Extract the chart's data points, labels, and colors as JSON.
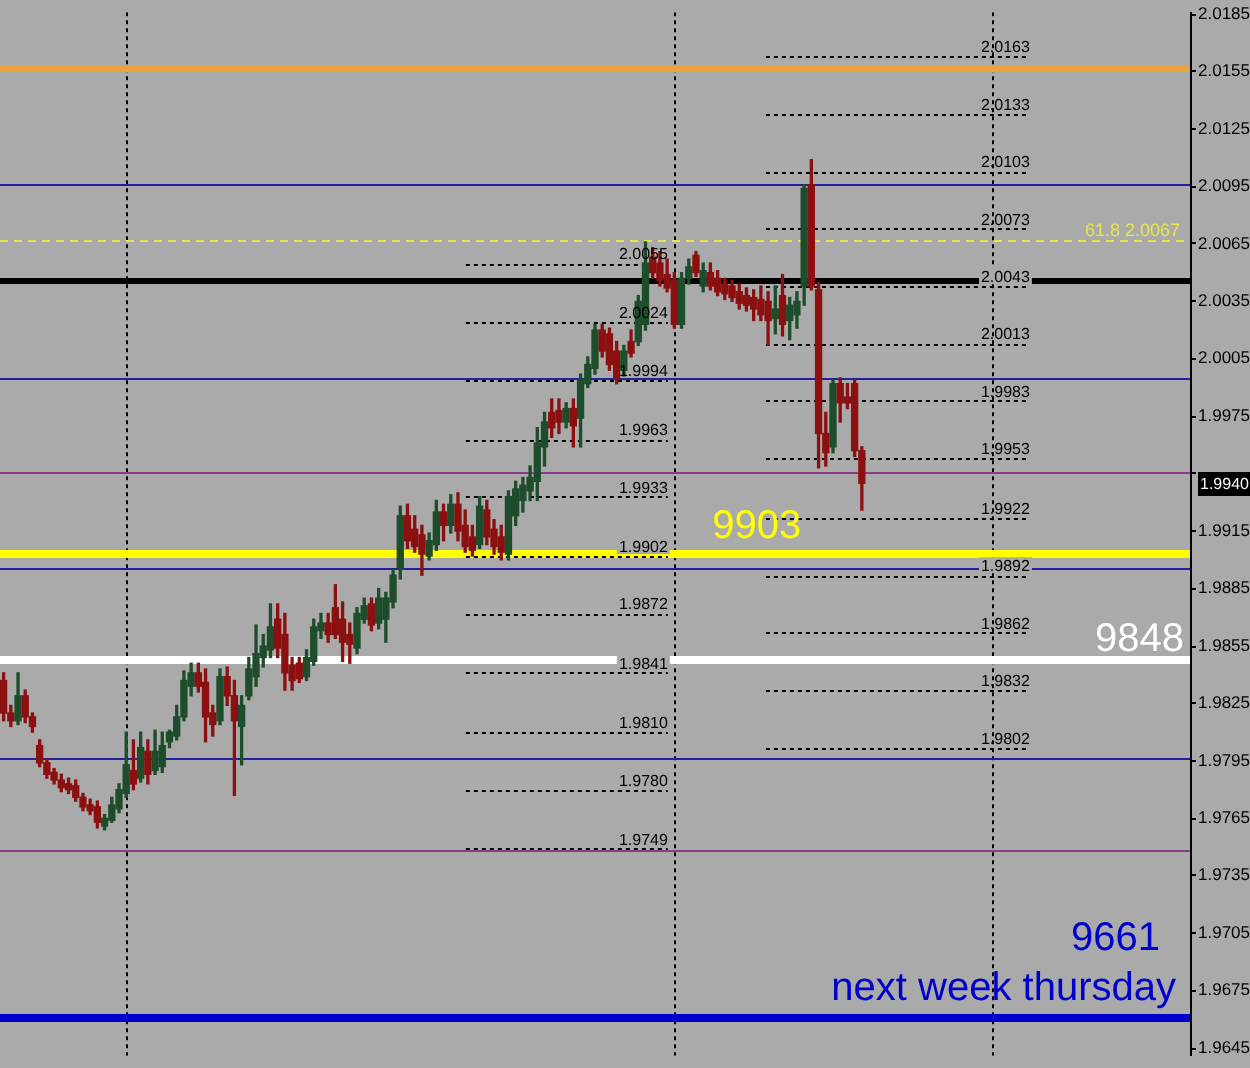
{
  "chart_data": {
    "type": "candlestick",
    "categories": [
      null,
      null,
      null,
      null,
      null,
      null,
      null,
      null,
      null,
      null,
      null,
      null,
      null,
      null,
      null,
      null,
      null,
      null,
      null,
      null,
      null,
      null,
      null,
      null,
      null,
      null,
      null,
      null,
      null,
      null,
      null,
      null,
      null,
      null,
      null,
      null,
      null,
      null,
      null,
      null,
      null,
      null,
      null,
      null,
      null,
      null,
      null,
      null,
      null,
      null,
      null,
      null,
      null,
      null,
      null,
      null,
      null,
      null,
      null,
      null,
      null,
      null,
      null,
      null,
      null,
      null,
      null,
      null,
      null,
      null,
      null,
      null,
      null,
      null,
      null,
      null,
      null,
      null,
      null,
      null,
      null,
      null,
      null,
      null,
      null,
      null,
      null,
      null,
      null,
      null,
      null,
      null,
      null,
      null,
      null,
      null,
      null,
      null,
      null,
      null,
      null,
      null,
      null,
      null,
      null,
      null,
      null,
      null,
      null,
      null,
      null,
      null,
      null,
      null,
      null,
      null,
      null,
      null,
      null,
      null,
      null,
      null,
      null,
      null,
      null,
      null,
      null,
      null,
      null,
      null,
      null,
      null,
      null,
      null,
      null,
      null,
      null,
      null,
      null,
      null,
      null,
      null,
      null,
      null,
      null,
      null,
      null,
      null,
      null,
      null,
      null,
      null,
      null,
      null,
      null,
      null,
      null,
      null,
      null,
      null,
      null,
      null,
      null,
      null,
      null
    ],
    "ohlc": [
      [
        1.9837,
        1.9841,
        1.9816,
        1.982
      ],
      [
        1.982,
        1.9824,
        1.9813,
        1.9816
      ],
      [
        1.9816,
        1.9841,
        1.9814,
        1.9829
      ],
      [
        1.9829,
        1.9832,
        1.9815,
        1.9818
      ],
      [
        1.9818,
        1.982,
        1.981,
        1.9813
      ],
      [
        1.9803,
        1.9806,
        1.9792,
        1.9794
      ],
      [
        1.9794,
        1.9796,
        1.9786,
        1.9788
      ],
      [
        1.9789,
        1.9791,
        1.9783,
        1.9785
      ],
      [
        1.9785,
        1.9788,
        1.9779,
        1.9781
      ],
      [
        1.9783,
        1.9786,
        1.9778,
        1.978
      ],
      [
        1.9782,
        1.9785,
        1.9774,
        1.9776
      ],
      [
        1.9776,
        1.9778,
        1.9769,
        1.9771
      ],
      [
        1.9772,
        1.9775,
        1.9767,
        1.9769
      ],
      [
        1.9771,
        1.9774,
        1.976,
        1.9763
      ],
      [
        1.9761,
        1.9767,
        1.9759,
        1.9765
      ],
      [
        1.9764,
        1.9776,
        1.9763,
        1.9772
      ],
      [
        1.977,
        1.9783,
        1.9768,
        1.978
      ],
      [
        1.9778,
        1.981,
        1.9776,
        1.9793
      ],
      [
        1.979,
        1.9806,
        1.978,
        1.9783
      ],
      [
        1.9786,
        1.981,
        1.9784,
        1.9802
      ],
      [
        1.98,
        1.9806,
        1.9783,
        1.9788
      ],
      [
        1.979,
        1.9811,
        1.9788,
        1.98
      ],
      [
        1.9792,
        1.981,
        1.9789,
        1.9803
      ],
      [
        1.9805,
        1.9811,
        1.9802,
        1.981
      ],
      [
        1.9808,
        1.9824,
        1.9806,
        1.9818
      ],
      [
        1.9818,
        1.9842,
        1.9816,
        1.9837
      ],
      [
        1.9834,
        1.9846,
        1.9829,
        1.9841
      ],
      [
        1.9841,
        1.9846,
        1.9831,
        1.9834
      ],
      [
        1.9836,
        1.9843,
        1.9805,
        1.9818
      ],
      [
        1.982,
        1.9824,
        1.9808,
        1.9814
      ],
      [
        1.9816,
        1.9843,
        1.9814,
        1.9839
      ],
      [
        1.9839,
        1.9844,
        1.9824,
        1.9829
      ],
      [
        1.9829,
        1.9837,
        1.9777,
        1.9816
      ],
      [
        1.9813,
        1.9829,
        1.9793,
        1.9824
      ],
      [
        1.9829,
        1.9849,
        1.9827,
        1.9843
      ],
      [
        1.9839,
        1.9866,
        1.9834,
        1.9851
      ],
      [
        1.9849,
        1.9861,
        1.9844,
        1.9855
      ],
      [
        1.9853,
        1.9877,
        1.9849,
        1.9865
      ],
      [
        1.9869,
        1.9877,
        1.9849,
        1.9854
      ],
      [
        1.9861,
        1.9872,
        1.9832,
        1.9841
      ],
      [
        1.9845,
        1.9849,
        1.9832,
        1.9837
      ],
      [
        1.9846,
        1.9849,
        1.9836,
        1.9838
      ],
      [
        1.9839,
        1.9853,
        1.9837,
        1.9849
      ],
      [
        1.9847,
        1.9869,
        1.9845,
        1.9865
      ],
      [
        1.9863,
        1.9872,
        1.9859,
        1.9867
      ],
      [
        1.9867,
        1.9872,
        1.9857,
        1.9861
      ],
      [
        1.9875,
        1.9887,
        1.9859,
        1.9861
      ],
      [
        1.9869,
        1.9878,
        1.9847,
        1.9857
      ],
      [
        1.9861,
        1.9867,
        1.9846,
        1.9856
      ],
      [
        1.9854,
        1.9875,
        1.9851,
        1.9872
      ],
      [
        1.9869,
        1.988,
        1.9867,
        1.9876
      ],
      [
        1.9877,
        1.988,
        1.9863,
        1.9866
      ],
      [
        1.9867,
        1.9885,
        1.9864,
        1.988
      ],
      [
        1.9869,
        1.9883,
        1.9857,
        1.988
      ],
      [
        1.9878,
        1.9895,
        1.9875,
        1.9892
      ],
      [
        1.9895,
        1.9928,
        1.989,
        1.9923
      ],
      [
        1.9923,
        1.9929,
        1.9906,
        1.991
      ],
      [
        1.9916,
        1.9923,
        1.9904,
        1.9907
      ],
      [
        1.9913,
        1.9918,
        1.9892,
        1.9903
      ],
      [
        1.9902,
        1.9914,
        1.99,
        1.991
      ],
      [
        1.9908,
        1.9931,
        1.9905,
        1.9925
      ],
      [
        1.9925,
        1.9929,
        1.991,
        1.9918
      ],
      [
        1.9918,
        1.9934,
        1.9914,
        1.9929
      ],
      [
        1.9929,
        1.9935,
        1.991,
        1.9915
      ],
      [
        1.9918,
        1.9926,
        1.9904,
        1.9907
      ],
      [
        1.9912,
        1.9918,
        1.9902,
        1.9905
      ],
      [
        1.9908,
        1.9933,
        1.9906,
        1.9928
      ],
      [
        1.9926,
        1.9931,
        1.9908,
        1.9912
      ],
      [
        1.9916,
        1.9921,
        1.9903,
        1.9907
      ],
      [
        1.9912,
        1.9918,
        1.99,
        1.9904
      ],
      [
        1.9903,
        1.9936,
        1.99,
        1.9933
      ],
      [
        1.9923,
        1.9941,
        1.9918,
        1.9937
      ],
      [
        1.9931,
        1.9943,
        1.9925,
        1.9939
      ],
      [
        1.9936,
        1.9949,
        1.9931,
        1.9943
      ],
      [
        1.9941,
        1.9969,
        1.9931,
        1.9961
      ],
      [
        1.9959,
        1.9977,
        1.9949,
        1.9972
      ],
      [
        1.9977,
        1.9984,
        1.9964,
        1.9969
      ],
      [
        1.9978,
        1.9984,
        1.9966,
        1.9972
      ],
      [
        1.9972,
        1.9982,
        1.9969,
        1.9979
      ],
      [
        1.9979,
        1.9984,
        1.9959,
        1.997
      ],
      [
        1.9974,
        1.9997,
        1.9959,
        1.9994
      ],
      [
        1.9992,
        2.0006,
        1.999,
        2.0002
      ],
      [
        2.0,
        2.0023,
        1.9997,
        2.002
      ],
      [
        2.002,
        2.0023,
        2.0006,
        2.0009
      ],
      [
        2.0018,
        2.0021,
        1.9999,
        2.0002
      ],
      [
        2.0009,
        2.0014,
        1.9992,
        1.9995
      ],
      [
        1.9999,
        2.0012,
        1.9996,
        2.0009
      ],
      [
        2.0014,
        2.002,
        2.0006,
        2.0008
      ],
      [
        2.0014,
        2.0038,
        2.0012,
        2.0035
      ],
      [
        2.0023,
        2.0066,
        2.002,
        2.0055
      ],
      [
        2.0058,
        2.0063,
        2.0047,
        2.005
      ],
      [
        2.0055,
        2.0061,
        2.0043,
        2.0046
      ],
      [
        2.0049,
        2.0057,
        2.004,
        2.0042
      ],
      [
        2.0046,
        2.005,
        2.0021,
        2.0023
      ],
      [
        2.0023,
        2.005,
        2.0021,
        2.0047
      ],
      [
        2.0047,
        2.0057,
        2.0044,
        2.0053
      ],
      [
        2.0059,
        2.0061,
        2.0048,
        2.005
      ],
      [
        2.0043,
        2.0055,
        2.004,
        2.0051
      ],
      [
        2.005,
        2.0055,
        2.0041,
        2.0043
      ],
      [
        2.0047,
        2.0051,
        2.0038,
        2.004
      ],
      [
        2.0044,
        2.0047,
        2.0036,
        2.0039
      ],
      [
        2.0043,
        2.0046,
        2.0035,
        2.0037
      ],
      [
        2.004,
        2.0044,
        2.0031,
        2.0034
      ],
      [
        2.0038,
        2.0042,
        2.003,
        2.0033
      ],
      [
        2.0037,
        2.0041,
        2.0025,
        2.0031
      ],
      [
        2.0036,
        2.0043,
        2.0025,
        2.0028
      ],
      [
        2.0035,
        2.004,
        2.0012,
        2.0025
      ],
      [
        2.0026,
        2.0043,
        2.0018,
        2.0031
      ],
      [
        2.0038,
        2.0049,
        2.0017,
        2.0023
      ],
      [
        2.0025,
        2.0037,
        2.0015,
        2.0033
      ],
      [
        2.0028,
        2.004,
        2.0021,
        2.0035
      ],
      [
        2.0043,
        2.0096,
        2.0033,
        2.0094
      ],
      [
        2.0096,
        2.0109,
        2.0041,
        2.0043
      ],
      [
        2.0041,
        2.0045,
        1.9948,
        1.9966
      ],
      [
        1.9966,
        1.9977,
        1.9949,
        1.9956
      ],
      [
        1.9959,
        1.9994,
        1.9956,
        1.9992
      ],
      [
        1.9992,
        1.9995,
        1.9972,
        1.9982
      ],
      [
        1.9985,
        1.9992,
        1.9979,
        1.9982
      ],
      [
        1.9992,
        1.9994,
        1.9954,
        1.9957
      ],
      [
        1.9957,
        1.9959,
        1.9926,
        1.994
      ],
      null,
      null,
      null,
      null,
      null,
      null,
      null,
      null,
      null,
      null,
      null,
      null,
      null,
      null,
      null,
      null,
      null,
      null,
      null,
      null,
      null,
      null,
      null,
      null,
      null,
      null,
      null,
      null,
      null,
      null,
      null,
      null,
      null,
      null,
      null,
      null,
      null,
      null,
      null,
      null,
      null,
      null,
      null,
      null,
      null
    ],
    "colors": [
      "#8c1010",
      "#8c1010",
      "#1d4d2b",
      "#8c1010",
      "#8c1010",
      "#8c1010",
      "#8c1010",
      "#8c1010",
      "#8c1010",
      "#8c1010",
      "#8c1010",
      "#8c1010",
      "#8c1010",
      "#8c1010",
      "#1d4d2b",
      "#1d4d2b",
      "#1d4d2b",
      "#1d4d2b",
      "#8c1010",
      "#1d4d2b",
      "#8c1010",
      "#1d4d2b",
      "#1d4d2b",
      "#1d4d2b",
      "#1d4d2b",
      "#1d4d2b",
      "#1d4d2b",
      "#8c1010",
      "#8c1010",
      "#8c1010",
      "#1d4d2b",
      "#8c1010",
      "#8c1010",
      "#1d4d2b",
      "#1d4d2b",
      "#1d4d2b",
      "#1d4d2b",
      "#1d4d2b",
      "#8c1010",
      "#8c1010",
      "#8c1010",
      "#8c1010",
      "#1d4d2b",
      "#1d4d2b",
      "#1d4d2b",
      "#8c1010",
      "#8c1010",
      "#8c1010",
      "#8c1010",
      "#1d4d2b",
      "#1d4d2b",
      "#8c1010",
      "#1d4d2b",
      "#1d4d2b",
      "#1d4d2b",
      "#1d4d2b",
      "#8c1010",
      "#8c1010",
      "#8c1010",
      "#1d4d2b",
      "#1d4d2b",
      "#8c1010",
      "#1d4d2b",
      "#8c1010",
      "#8c1010",
      "#8c1010",
      "#1d4d2b",
      "#8c1010",
      "#8c1010",
      "#8c1010",
      "#1d4d2b",
      "#1d4d2b",
      "#1d4d2b",
      "#1d4d2b",
      "#1d4d2b",
      "#1d4d2b",
      "#8c1010",
      "#8c1010",
      "#1d4d2b",
      "#8c1010",
      "#1d4d2b",
      "#1d4d2b",
      "#1d4d2b",
      "#8c1010",
      "#8c1010",
      "#8c1010",
      "#1d4d2b",
      "#8c1010",
      "#1d4d2b",
      "#1d4d2b",
      "#8c1010",
      "#8c1010",
      "#8c1010",
      "#8c1010",
      "#1d4d2b",
      "#1d4d2b",
      "#8c1010",
      "#1d4d2b",
      "#8c1010",
      "#8c1010",
      "#8c1010",
      "#8c1010",
      "#8c1010",
      "#8c1010",
      "#8c1010",
      "#8c1010",
      "#8c1010",
      "#1d4d2b",
      "#8c1010",
      "#1d4d2b",
      "#1d4d2b",
      "#1d4d2b",
      "#8c1010",
      "#8c1010",
      "#8c1010",
      "#1d4d2b",
      "#8c1010",
      "#8c1010",
      "#8c1010",
      "#8c1010",
      null,
      null,
      null,
      null,
      null,
      null,
      null,
      null,
      null,
      null,
      null,
      null,
      null,
      null,
      null,
      null,
      null,
      null,
      null,
      null,
      null,
      null,
      null,
      null,
      null,
      null,
      null,
      null,
      null,
      null,
      null,
      null,
      null,
      null,
      null,
      null,
      null,
      null,
      null,
      null,
      null,
      null,
      null,
      null,
      null
    ],
    "ylim": [
      1.9641,
      2.0186
    ],
    "yticks": [
      1.9645,
      1.9675,
      1.9705,
      1.9735,
      1.9765,
      1.9795,
      1.9825,
      1.9855,
      1.9885,
      1.9915,
      {
        "value": 1.9945,
        "label": null
      },
      1.9975,
      2.0005,
      2.0035,
      2.0065,
      2.0095,
      2.0125,
      2.0155,
      2.0185
    ],
    "ref_lines": [
      {
        "axis": "y",
        "value": 2.0157,
        "color": "#e8a43a"
      },
      {
        "axis": "y",
        "value": 2.0096,
        "color": "#2020a0"
      },
      {
        "axis": "y",
        "value": 2.0067,
        "label": "61.8 2.0067",
        "color": "#e6e64a",
        "line_style": "dashed"
      },
      {
        "axis": "y",
        "value": 2.0046,
        "color": "#000000"
      },
      {
        "axis": "y",
        "value": 1.9995,
        "color": "#2020a0"
      },
      {
        "axis": "y",
        "value": 1.9946,
        "color": "#8a3a8a"
      },
      {
        "axis": "y",
        "value": 1.9903,
        "color": "#ffff00"
      },
      {
        "axis": "y",
        "value": 1.9896,
        "color": "#2020a0"
      },
      {
        "axis": "y",
        "value": 1.9848,
        "color": "#ffffff"
      },
      {
        "axis": "y",
        "value": 1.9796,
        "color": "#2020a0"
      },
      {
        "axis": "y",
        "value": 1.9748,
        "color": "#8a3a8a"
      },
      {
        "axis": "y",
        "value": 1.9661,
        "color": "#0000cc"
      },
      {
        "axis": "y",
        "value": 2.0163,
        "label": "2.0163",
        "color": "#000000",
        "line_style": "dotted"
      },
      {
        "axis": "y",
        "value": 2.0133,
        "label": "2.0133",
        "color": "#000000",
        "line_style": "dotted"
      },
      {
        "axis": "y",
        "value": 2.0103,
        "label": "2.0103",
        "color": "#000000",
        "line_style": "dotted"
      },
      {
        "axis": "y",
        "value": 2.0073,
        "label": "2.0073",
        "color": "#000000",
        "line_style": "dotted"
      },
      {
        "axis": "y",
        "value": 2.0043,
        "label": "2.0043",
        "color": "#000000",
        "line_style": "dotted"
      },
      {
        "axis": "y",
        "value": 2.0013,
        "label": "2.0013",
        "color": "#000000",
        "line_style": "dotted"
      },
      {
        "axis": "y",
        "value": 1.9983,
        "label": "1.9983",
        "color": "#000000",
        "line_style": "dotted"
      },
      {
        "axis": "y",
        "value": 1.9953,
        "label": "1.9953",
        "color": "#000000",
        "line_style": "dotted"
      },
      {
        "axis": "y",
        "value": 1.9922,
        "label": "1.9922",
        "color": "#000000",
        "line_style": "dotted"
      },
      {
        "axis": "y",
        "value": 1.9892,
        "label": "1.9892",
        "color": "#000000",
        "line_style": "dotted"
      },
      {
        "axis": "y",
        "value": 1.9862,
        "label": "1.9862",
        "color": "#000000",
        "line_style": "dotted"
      },
      {
        "axis": "y",
        "value": 1.9832,
        "label": "1.9832",
        "color": "#000000",
        "line_style": "dotted"
      },
      {
        "axis": "y",
        "value": 1.9802,
        "label": "1.9802",
        "color": "#000000",
        "line_style": "dotted"
      },
      {
        "axis": "y",
        "value": 2.0055,
        "label": "2.0055",
        "color": "#000000",
        "line_style": "dotted"
      },
      {
        "axis": "y",
        "value": 2.0024,
        "label": "2.0024",
        "color": "#000000",
        "line_style": "dotted"
      },
      {
        "axis": "y",
        "value": 1.9994,
        "label": "1.9994",
        "color": "#000000",
        "line_style": "dotted"
      },
      {
        "axis": "y",
        "value": 1.9963,
        "label": "1.9963",
        "color": "#000000",
        "line_style": "dotted"
      },
      {
        "axis": "y",
        "value": 1.9933,
        "label": "1.9933",
        "color": "#000000",
        "line_style": "dotted"
      },
      {
        "axis": "y",
        "value": 1.9902,
        "label": "1.9902",
        "color": "#000000",
        "line_style": "dotted"
      },
      {
        "axis": "y",
        "value": 1.9872,
        "label": "1.9872",
        "color": "#000000",
        "line_style": "dotted"
      },
      {
        "axis": "y",
        "value": 1.9841,
        "label": "1.9841",
        "color": "#000000",
        "line_style": "dotted"
      },
      {
        "axis": "y",
        "value": 1.981,
        "label": "1.9810",
        "color": "#000000",
        "line_style": "dotted"
      },
      {
        "axis": "y",
        "value": 1.978,
        "label": "1.9780",
        "color": "#000000",
        "line_style": "dotted"
      },
      {
        "axis": "y",
        "value": 1.9749,
        "label": "1.9749",
        "color": "#000000",
        "line_style": "dotted"
      }
    ],
    "annotations": [
      {
        "text": "9903",
        "y": 1.9903
      },
      {
        "text": "9848",
        "y": 1.9848
      },
      {
        "text": "9661",
        "y": 1.9661
      },
      {
        "text": "next week thursday",
        "y": 1.9661
      },
      "1.9940"
    ],
    "grid": false,
    "legend": false,
    "tick_labels": "y"
  }
}
